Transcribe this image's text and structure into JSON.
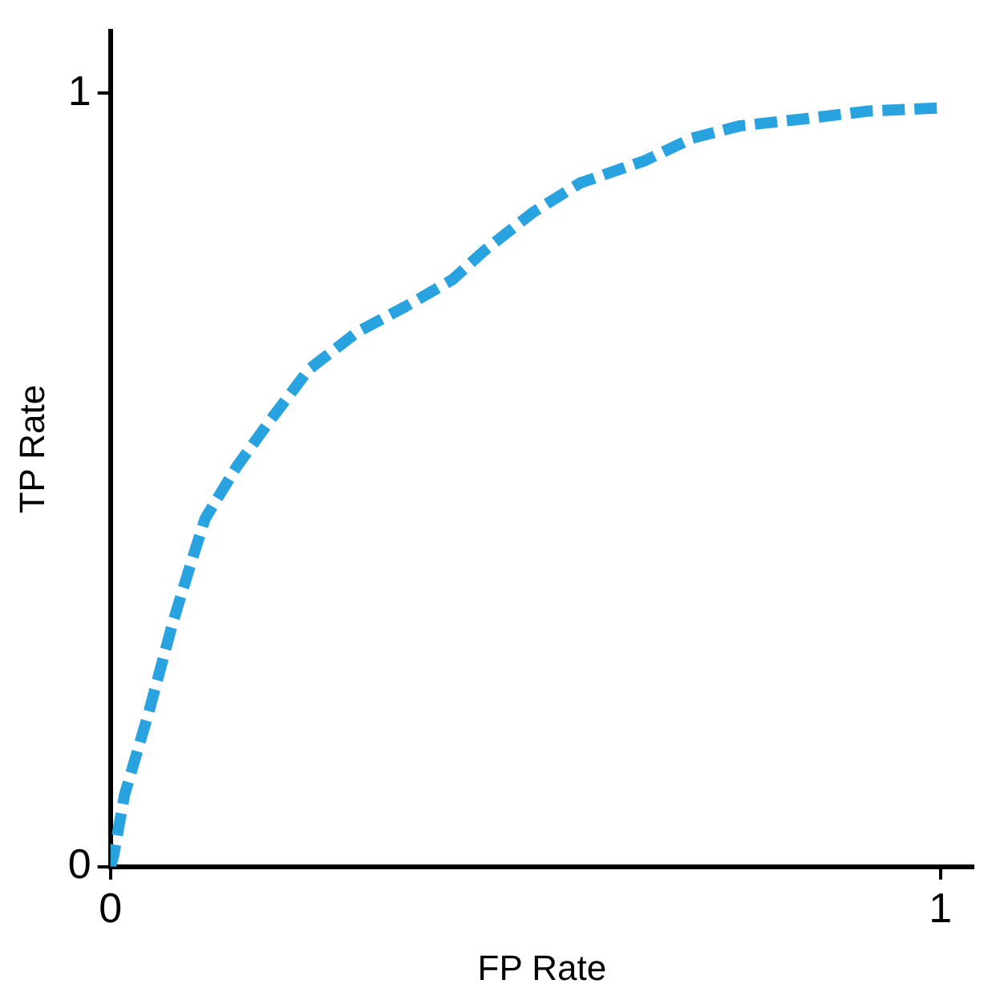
{
  "chart_data": {
    "type": "line",
    "xlabel": "FP Rate",
    "ylabel": "TP Rate",
    "x": [
      0,
      0.004,
      0.017,
      0.046,
      0.075,
      0.094,
      0.114,
      0.152,
      0.191,
      0.239,
      0.297,
      0.355,
      0.412,
      0.451,
      0.509,
      0.566,
      0.644,
      0.701,
      0.759,
      0.836,
      0.913,
      0.996
    ],
    "series": [
      {
        "color": "#29a3e0",
        "values": [
          0,
          0.015,
          0.093,
          0.199,
          0.315,
          0.382,
          0.45,
          0.517,
          0.575,
          0.643,
          0.691,
          0.724,
          0.759,
          0.797,
          0.846,
          0.884,
          0.913,
          0.942,
          0.958,
          0.967,
          0.977,
          0.981
        ]
      }
    ],
    "xlim": [
      0,
      1.04
    ],
    "ylim": [
      0,
      1.08
    ],
    "xticks": [
      0,
      1
    ],
    "yticks": [
      0,
      1
    ],
    "grid": false,
    "legend": false,
    "marker": "none",
    "line_style": "dashed"
  }
}
